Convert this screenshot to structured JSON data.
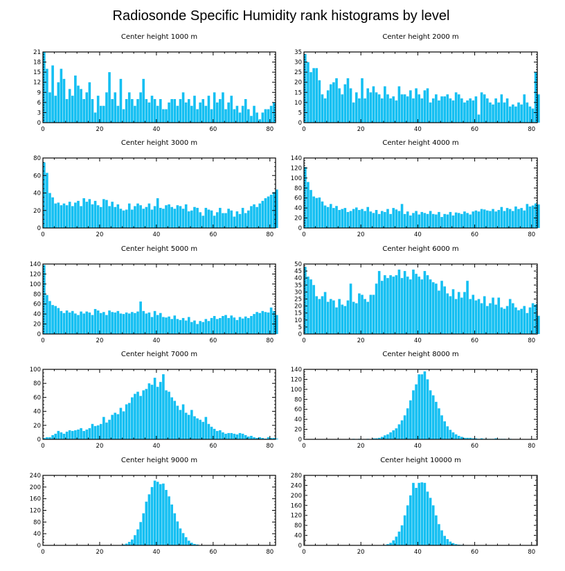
{
  "title": "Radiosonde Specific Humidity rank histograms by level",
  "colors": {
    "bar": "#14bff2",
    "axis": "#000000",
    "background": "#ffffff"
  },
  "chart_data": [
    {
      "type": "bar",
      "title": "Center height 1000 m",
      "xlabel": "",
      "ylabel": "",
      "xlim": [
        0,
        82
      ],
      "ylim": [
        0,
        21
      ],
      "xticks": [
        0,
        20,
        40,
        60,
        80
      ],
      "yticks": [
        0,
        3,
        6,
        9,
        12,
        15,
        18,
        21
      ],
      "values": [
        21,
        16,
        9,
        17,
        8,
        12,
        16,
        13,
        7,
        10,
        8,
        14,
        11,
        10,
        7,
        9,
        12,
        7,
        3,
        8,
        5,
        5,
        9,
        15,
        7,
        9,
        5,
        13,
        4,
        7,
        9,
        7,
        5,
        7,
        9,
        13,
        7,
        6,
        8,
        7,
        5,
        7,
        4,
        4,
        6,
        7,
        7,
        5,
        7,
        9,
        6,
        7,
        5,
        8,
        4,
        6,
        7,
        5,
        8,
        4,
        9,
        6,
        7,
        9,
        4,
        6,
        8,
        4,
        5,
        3,
        5,
        7,
        4,
        2,
        5,
        3,
        1,
        3,
        4,
        4,
        5,
        6
      ]
    },
    {
      "type": "bar",
      "title": "Center height 2000 m",
      "xlabel": "",
      "ylabel": "",
      "xlim": [
        0,
        82
      ],
      "ylim": [
        0,
        35
      ],
      "xticks": [
        0,
        20,
        40,
        60,
        80
      ],
      "yticks": [
        0,
        5,
        10,
        15,
        20,
        25,
        30,
        35
      ],
      "values": [
        34,
        30,
        25,
        27,
        27,
        21,
        14,
        12,
        16,
        19,
        20,
        22,
        17,
        14,
        19,
        22,
        17,
        10,
        15,
        12,
        22,
        12,
        17,
        15,
        18,
        15,
        14,
        12,
        18,
        14,
        12,
        13,
        11,
        18,
        14,
        14,
        13,
        16,
        12,
        17,
        14,
        12,
        16,
        17,
        10,
        12,
        14,
        11,
        13,
        13,
        14,
        12,
        11,
        15,
        14,
        12,
        10,
        11,
        12,
        11,
        13,
        4,
        15,
        14,
        12,
        10,
        9,
        12,
        10,
        14,
        10,
        12,
        8,
        9,
        8,
        10,
        9,
        14,
        10,
        8,
        7,
        25,
        14
      ]
    },
    {
      "type": "bar",
      "title": "Center height 3000 m",
      "xlabel": "",
      "ylabel": "",
      "xlim": [
        0,
        82
      ],
      "ylim": [
        0,
        80
      ],
      "xticks": [
        0,
        20,
        40,
        60,
        80
      ],
      "yticks": [
        0,
        20,
        40,
        60,
        80
      ],
      "values": [
        75,
        63,
        40,
        35,
        28,
        29,
        26,
        28,
        26,
        30,
        25,
        29,
        31,
        25,
        34,
        30,
        33,
        27,
        31,
        26,
        24,
        33,
        32,
        25,
        30,
        24,
        27,
        22,
        20,
        21,
        28,
        21,
        25,
        28,
        26,
        22,
        24,
        28,
        21,
        25,
        34,
        23,
        22,
        26,
        27,
        24,
        22,
        26,
        25,
        22,
        27,
        19,
        20,
        24,
        23,
        18,
        14,
        23,
        21,
        20,
        14,
        18,
        23,
        17,
        17,
        22,
        20,
        13,
        19,
        16,
        23,
        17,
        20,
        25,
        27,
        24,
        28,
        31,
        34,
        36,
        38,
        41,
        44
      ]
    },
    {
      "type": "bar",
      "title": "Center height 4000 m",
      "xlabel": "",
      "ylabel": "",
      "xlim": [
        0,
        82
      ],
      "ylim": [
        0,
        140
      ],
      "xticks": [
        0,
        20,
        40,
        60,
        80
      ],
      "yticks": [
        0,
        20,
        40,
        60,
        80,
        100,
        120,
        140
      ],
      "values": [
        122,
        92,
        76,
        63,
        60,
        61,
        53,
        45,
        42,
        48,
        40,
        44,
        36,
        38,
        40,
        32,
        34,
        38,
        41,
        36,
        38,
        34,
        42,
        33,
        30,
        36,
        28,
        34,
        32,
        38,
        28,
        40,
        37,
        34,
        48,
        28,
        33,
        25,
        30,
        34,
        27,
        32,
        30,
        28,
        34,
        28,
        27,
        32,
        22,
        28,
        27,
        32,
        25,
        31,
        30,
        28,
        33,
        30,
        27,
        33,
        35,
        33,
        38,
        37,
        35,
        34,
        38,
        33,
        36,
        42,
        34,
        40,
        38,
        34,
        43,
        38,
        40,
        35,
        48,
        43,
        45,
        49,
        47
      ]
    },
    {
      "type": "bar",
      "title": "Center height 5000 m",
      "xlabel": "",
      "ylabel": "",
      "xlim": [
        0,
        82
      ],
      "ylim": [
        0,
        140
      ],
      "xticks": [
        0,
        20,
        40,
        60,
        80
      ],
      "yticks": [
        0,
        20,
        40,
        60,
        80,
        100,
        120,
        140
      ],
      "values": [
        138,
        78,
        66,
        58,
        56,
        52,
        46,
        42,
        47,
        43,
        46,
        41,
        38,
        45,
        41,
        45,
        43,
        38,
        50,
        47,
        42,
        44,
        38,
        47,
        44,
        43,
        46,
        41,
        40,
        43,
        41,
        44,
        42,
        45,
        65,
        46,
        41,
        43,
        34,
        46,
        38,
        42,
        34,
        33,
        35,
        30,
        37,
        30,
        28,
        32,
        27,
        34,
        24,
        27,
        20,
        26,
        24,
        30,
        26,
        32,
        36,
        30,
        32,
        36,
        38,
        32,
        37,
        33,
        28,
        34,
        31,
        35,
        32,
        36,
        40,
        44,
        42,
        46,
        44,
        43,
        53,
        46,
        38
      ]
    },
    {
      "type": "bar",
      "title": "Center height 6000 m",
      "xlabel": "",
      "ylabel": "",
      "xlim": [
        0,
        82
      ],
      "ylim": [
        0,
        50
      ],
      "xticks": [
        0,
        20,
        40,
        60,
        80
      ],
      "yticks": [
        0,
        5,
        10,
        15,
        20,
        25,
        30,
        35,
        40,
        45,
        50
      ],
      "values": [
        48,
        41,
        39,
        35,
        27,
        25,
        27,
        30,
        23,
        25,
        24,
        19,
        25,
        21,
        20,
        24,
        36,
        23,
        22,
        29,
        28,
        25,
        23,
        28,
        28,
        36,
        45,
        38,
        42,
        40,
        42,
        41,
        42,
        46,
        40,
        45,
        41,
        39,
        46,
        43,
        41,
        39,
        45,
        42,
        39,
        37,
        36,
        31,
        38,
        34,
        29,
        27,
        32,
        25,
        30,
        26,
        30,
        38,
        25,
        28,
        24,
        25,
        22,
        27,
        20,
        22,
        26,
        21,
        26,
        19,
        18,
        20,
        25,
        22,
        19,
        17,
        18,
        20,
        15,
        19,
        22,
        21,
        13
      ]
    },
    {
      "type": "bar",
      "title": "Center height 7000 m",
      "xlabel": "",
      "ylabel": "",
      "xlim": [
        0,
        82
      ],
      "ylim": [
        0,
        100
      ],
      "xticks": [
        0,
        20,
        40,
        60,
        80
      ],
      "yticks": [
        0,
        20,
        40,
        60,
        80,
        100
      ],
      "values": [
        2,
        3,
        3,
        6,
        8,
        12,
        10,
        8,
        11,
        13,
        12,
        13,
        14,
        16,
        12,
        14,
        16,
        22,
        19,
        20,
        22,
        32,
        24,
        28,
        35,
        38,
        36,
        45,
        40,
        50,
        52,
        60,
        65,
        68,
        62,
        70,
        72,
        80,
        78,
        88,
        75,
        82,
        93,
        70,
        68,
        60,
        55,
        48,
        42,
        50,
        38,
        35,
        42,
        33,
        30,
        28,
        25,
        32,
        22,
        18,
        15,
        12,
        13,
        10,
        8,
        9,
        9,
        8,
        7,
        9,
        8,
        6,
        4,
        5,
        3,
        2,
        3,
        2,
        1,
        3,
        2,
        2,
        1
      ]
    },
    {
      "type": "bar",
      "title": "Center height 8000 m",
      "xlabel": "",
      "ylabel": "",
      "xlim": [
        0,
        82
      ],
      "ylim": [
        0,
        140
      ],
      "xticks": [
        0,
        20,
        40,
        60,
        80
      ],
      "yticks": [
        0,
        20,
        40,
        60,
        80,
        100,
        120,
        140
      ],
      "values": [
        0,
        0,
        0,
        0,
        0,
        0,
        0,
        0,
        0,
        0,
        0,
        0,
        0,
        0,
        0,
        0,
        0,
        1,
        0,
        1,
        0,
        0,
        1,
        0,
        2,
        2,
        3,
        5,
        8,
        10,
        14,
        18,
        22,
        30,
        38,
        48,
        62,
        78,
        98,
        110,
        130,
        130,
        136,
        120,
        98,
        88,
        75,
        62,
        48,
        36,
        26,
        19,
        14,
        10,
        7,
        5,
        3,
        3,
        3,
        2,
        2,
        1,
        2,
        1,
        1,
        1,
        1,
        2,
        1,
        1,
        1,
        0,
        1,
        0,
        0,
        0,
        0,
        0,
        0,
        0,
        0,
        0,
        0
      ]
    },
    {
      "type": "bar",
      "title": "Center height 9000 m",
      "xlabel": "",
      "ylabel": "",
      "xlim": [
        0,
        82
      ],
      "ylim": [
        0,
        240
      ],
      "xticks": [
        0,
        20,
        40,
        60,
        80
      ],
      "yticks": [
        0,
        40,
        80,
        120,
        160,
        200,
        240
      ],
      "values": [
        0,
        0,
        0,
        0,
        0,
        0,
        0,
        0,
        0,
        0,
        0,
        0,
        0,
        0,
        0,
        0,
        0,
        0,
        0,
        0,
        0,
        0,
        0,
        0,
        0,
        0,
        0,
        1,
        3,
        6,
        12,
        20,
        35,
        55,
        80,
        110,
        150,
        175,
        200,
        222,
        218,
        210,
        212,
        190,
        168,
        140,
        110,
        82,
        58,
        42,
        28,
        16,
        9,
        5,
        3,
        1,
        1,
        0,
        0,
        0,
        0,
        0,
        0,
        0,
        0,
        0,
        0,
        0,
        0,
        0,
        0,
        0,
        0,
        0,
        0,
        0,
        0,
        0,
        0,
        0,
        0,
        0,
        0
      ]
    },
    {
      "type": "bar",
      "title": "Center height 10000 m",
      "xlabel": "",
      "ylabel": "",
      "xlim": [
        0,
        82
      ],
      "ylim": [
        0,
        280
      ],
      "xticks": [
        0,
        20,
        40,
        60,
        80
      ],
      "yticks": [
        0,
        20,
        40,
        60,
        80,
        100,
        120,
        140,
        160,
        180,
        200,
        220,
        240,
        260,
        280
      ],
      "ytick_labels": [
        0,
        40,
        80,
        120,
        160,
        200,
        240,
        280
      ],
      "values": [
        0,
        0,
        0,
        0,
        0,
        0,
        0,
        0,
        0,
        0,
        0,
        0,
        0,
        0,
        0,
        0,
        0,
        0,
        0,
        0,
        0,
        0,
        0,
        0,
        0,
        0,
        0,
        1,
        2,
        5,
        10,
        20,
        35,
        55,
        80,
        120,
        160,
        200,
        250,
        230,
        250,
        252,
        250,
        215,
        190,
        160,
        120,
        85,
        60,
        38,
        25,
        15,
        9,
        5,
        3,
        2,
        1,
        0,
        0,
        0,
        0,
        0,
        0,
        0,
        0,
        0,
        0,
        0,
        0,
        0,
        0,
        0,
        0,
        0,
        0,
        0,
        0,
        0,
        0,
        0,
        0,
        0,
        0
      ]
    }
  ]
}
